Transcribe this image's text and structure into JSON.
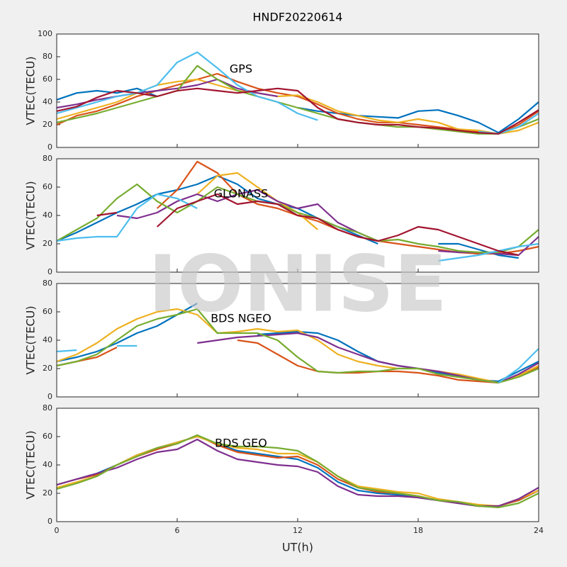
{
  "watermark": "IONISE",
  "chart_data": [
    {
      "type": "line",
      "title": "HNDF20220614",
      "annotation": "GPS",
      "ylabel": "VTEC(TECU)",
      "x": [
        0,
        1,
        2,
        3,
        4,
        5,
        6,
        7,
        8,
        9,
        10,
        11,
        12,
        13,
        14,
        15,
        16,
        17,
        18,
        19,
        20,
        21,
        22,
        23,
        24
      ],
      "xlim": [
        0,
        24
      ],
      "xticks": [
        0,
        6,
        12,
        18,
        24
      ],
      "ylim": [
        0,
        100
      ],
      "yticks": [
        0,
        20,
        40,
        60,
        80,
        100
      ],
      "series": [
        {
          "color": "#0072BD",
          "values": [
            42,
            48,
            50,
            48,
            52,
            45,
            null,
            null,
            null,
            null,
            null,
            null,
            35,
            32,
            30,
            28,
            27,
            26,
            32,
            33,
            28,
            22,
            13,
            25,
            40
          ]
        },
        {
          "color": "#D95319",
          "values": [
            20,
            28,
            32,
            38,
            45,
            50,
            55,
            60,
            65,
            58,
            52,
            48,
            45,
            38,
            30,
            25,
            22,
            22,
            20,
            18,
            16,
            14,
            12,
            20,
            32
          ]
        },
        {
          "color": "#EDB120",
          "values": [
            25,
            30,
            35,
            40,
            48,
            55,
            58,
            60,
            55,
            50,
            48,
            45,
            46,
            40,
            32,
            28,
            24,
            22,
            25,
            22,
            16,
            15,
            12,
            15,
            22
          ]
        },
        {
          "color": "#7E2F8E",
          "values": [
            35,
            38,
            42,
            45,
            48,
            50,
            52,
            55,
            60,
            52,
            48,
            45,
            null,
            null,
            null,
            null,
            null,
            null,
            null,
            null,
            null,
            null,
            null,
            null,
            null
          ]
        },
        {
          "color": "#77AC30",
          "values": [
            22,
            26,
            30,
            35,
            40,
            45,
            50,
            72,
            60,
            50,
            45,
            40,
            35,
            30,
            25,
            22,
            20,
            18,
            18,
            16,
            14,
            12,
            12,
            18,
            25
          ]
        },
        {
          "color": "#4DBEEE",
          "values": [
            30,
            35,
            40,
            45,
            48,
            55,
            75,
            84,
            70,
            55,
            45,
            40,
            30,
            24,
            null,
            null,
            null,
            null,
            null,
            null,
            null,
            14,
            12,
            18,
            30
          ]
        },
        {
          "color": "#A2142F",
          "values": [
            32,
            36,
            44,
            50,
            48,
            45,
            50,
            52,
            50,
            48,
            50,
            52,
            50,
            35,
            25,
            22,
            20,
            20,
            18,
            17,
            15,
            13,
            12,
            22,
            33
          ]
        }
      ]
    },
    {
      "type": "line",
      "annotation": "GLONASS",
      "ylabel": "VTEC(TECU)",
      "x": [
        0,
        1,
        2,
        3,
        4,
        5,
        6,
        7,
        8,
        9,
        10,
        11,
        12,
        13,
        14,
        15,
        16,
        17,
        18,
        19,
        20,
        21,
        22,
        23,
        24
      ],
      "xlim": [
        0,
        24
      ],
      "xticks": [
        0,
        6,
        12,
        18,
        24
      ],
      "ylim": [
        0,
        80
      ],
      "yticks": [
        0,
        20,
        40,
        60,
        80
      ],
      "series": [
        {
          "color": "#0072BD",
          "values": [
            22,
            28,
            35,
            42,
            48,
            55,
            58,
            62,
            68,
            62,
            52,
            48,
            45,
            38,
            32,
            26,
            20,
            null,
            null,
            20,
            20,
            16,
            12,
            10,
            null
          ]
        },
        {
          "color": "#D95319",
          "values": [
            null,
            null,
            null,
            null,
            null,
            45,
            58,
            78,
            70,
            55,
            48,
            45,
            40,
            36,
            30,
            25,
            22,
            20,
            18,
            16,
            14,
            13,
            13,
            15,
            18
          ]
        },
        {
          "color": "#EDB120",
          "values": [
            null,
            null,
            null,
            null,
            null,
            null,
            null,
            55,
            68,
            70,
            60,
            50,
            42,
            30,
            null,
            null,
            null,
            null,
            null,
            null,
            null,
            null,
            null,
            null,
            null
          ]
        },
        {
          "color": "#7E2F8E",
          "values": [
            null,
            null,
            null,
            40,
            38,
            42,
            50,
            55,
            50,
            55,
            58,
            50,
            45,
            48,
            35,
            28,
            22,
            null,
            null,
            15,
            14,
            14,
            13,
            12,
            25
          ]
        },
        {
          "color": "#77AC30",
          "values": [
            22,
            30,
            38,
            52,
            62,
            50,
            42,
            50,
            60,
            55,
            50,
            48,
            42,
            38,
            32,
            28,
            22,
            23,
            20,
            18,
            15,
            14,
            14,
            18,
            30
          ]
        },
        {
          "color": "#4DBEEE",
          "values": [
            22,
            24,
            25,
            25,
            45,
            55,
            52,
            45,
            null,
            null,
            null,
            null,
            null,
            null,
            null,
            null,
            null,
            null,
            null,
            8,
            10,
            12,
            15,
            18,
            20
          ]
        },
        {
          "color": "#A2142F",
          "values": [
            null,
            null,
            40,
            42,
            null,
            32,
            45,
            50,
            55,
            48,
            50,
            48,
            40,
            38,
            30,
            25,
            22,
            26,
            32,
            30,
            25,
            20,
            15,
            12,
            null
          ]
        }
      ]
    },
    {
      "type": "line",
      "annotation": "BDS NGEO",
      "ylabel": "VTEC(TECU)",
      "x": [
        0,
        1,
        2,
        3,
        4,
        5,
        6,
        7,
        8,
        9,
        10,
        11,
        12,
        13,
        14,
        15,
        16,
        17,
        18,
        19,
        20,
        21,
        22,
        23,
        24
      ],
      "xlim": [
        0,
        24
      ],
      "xticks": [
        0,
        6,
        12,
        18,
        24
      ],
      "ylim": [
        0,
        80
      ],
      "yticks": [
        0,
        20,
        40,
        60,
        80
      ],
      "series": [
        {
          "color": "#0072BD",
          "values": [
            25,
            28,
            32,
            38,
            45,
            50,
            58,
            66,
            null,
            null,
            44,
            45,
            46,
            45,
            40,
            32,
            25,
            22,
            20,
            17,
            15,
            12,
            11,
            18,
            25
          ]
        },
        {
          "color": "#D95319",
          "values": [
            22,
            25,
            28,
            35,
            null,
            null,
            null,
            null,
            null,
            40,
            38,
            30,
            22,
            18,
            17,
            17,
            18,
            18,
            17,
            15,
            12,
            11,
            10,
            15,
            21
          ]
        },
        {
          "color": "#EDB120",
          "values": [
            25,
            30,
            38,
            48,
            55,
            60,
            62,
            58,
            45,
            46,
            48,
            46,
            47,
            40,
            30,
            25,
            22,
            20,
            20,
            18,
            16,
            13,
            10,
            15,
            22
          ]
        },
        {
          "color": "#7E2F8E",
          "values": [
            null,
            null,
            null,
            null,
            null,
            null,
            null,
            38,
            40,
            42,
            43,
            44,
            45,
            42,
            35,
            30,
            25,
            22,
            20,
            18,
            15,
            12,
            10,
            16,
            24
          ]
        },
        {
          "color": "#77AC30",
          "values": [
            22,
            25,
            30,
            40,
            50,
            55,
            58,
            62,
            45,
            45,
            45,
            40,
            28,
            18,
            17,
            18,
            18,
            20,
            20,
            16,
            14,
            12,
            10,
            14,
            20
          ]
        },
        {
          "color": "#4DBEEE",
          "values": [
            32,
            33,
            null,
            36,
            36,
            null,
            null,
            null,
            null,
            null,
            null,
            null,
            null,
            null,
            null,
            null,
            null,
            null,
            null,
            null,
            null,
            null,
            10,
            20,
            34
          ]
        }
      ]
    },
    {
      "type": "line",
      "annotation": "BDS GEO",
      "ylabel": "VTEC(TECU)",
      "xlabel": "UT(h)",
      "x": [
        0,
        1,
        2,
        3,
        4,
        5,
        6,
        7,
        8,
        9,
        10,
        11,
        12,
        13,
        14,
        15,
        16,
        17,
        18,
        19,
        20,
        21,
        22,
        23,
        24
      ],
      "xlim": [
        0,
        24
      ],
      "xticks": [
        0,
        6,
        12,
        18,
        24
      ],
      "ylim": [
        0,
        80
      ],
      "yticks": [
        0,
        20,
        40,
        60,
        80
      ],
      "series": [
        {
          "color": "#0072BD",
          "values": [
            26,
            30,
            34,
            40,
            47,
            52,
            56,
            60,
            55,
            50,
            48,
            46,
            44,
            38,
            28,
            22,
            20,
            19,
            17,
            15,
            13,
            11,
            11,
            15,
            22
          ]
        },
        {
          "color": "#D95319",
          "values": [
            26,
            30,
            33,
            40,
            46,
            51,
            55,
            61,
            54,
            49,
            47,
            45,
            46,
            40,
            30,
            24,
            21,
            20,
            18,
            15,
            13,
            11,
            11,
            15,
            22
          ]
        },
        {
          "color": "#EDB120",
          "values": [
            24,
            28,
            32,
            40,
            47,
            52,
            56,
            60,
            55,
            52,
            51,
            48,
            48,
            42,
            32,
            25,
            23,
            21,
            20,
            16,
            14,
            12,
            11,
            16,
            22
          ]
        },
        {
          "color": "#7E2F8E",
          "values": [
            26,
            30,
            34,
            38,
            44,
            49,
            51,
            58,
            50,
            44,
            42,
            40,
            39,
            35,
            25,
            19,
            18,
            18,
            17,
            15,
            13,
            11,
            11,
            16,
            24
          ]
        },
        {
          "color": "#77AC30",
          "values": [
            23,
            27,
            32,
            40,
            46,
            52,
            55,
            61,
            55,
            53,
            53,
            52,
            50,
            42,
            32,
            24,
            22,
            20,
            18,
            15,
            14,
            11,
            10,
            13,
            20
          ]
        }
      ]
    }
  ]
}
